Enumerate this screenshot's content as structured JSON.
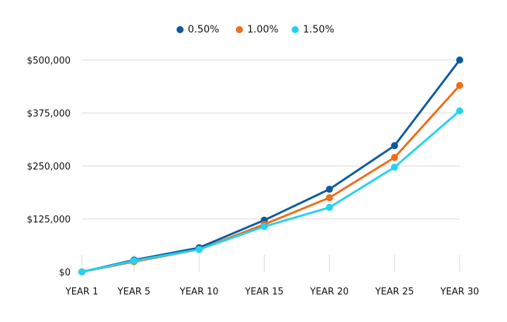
{
  "chart_data": {
    "type": "line",
    "categories": [
      "YEAR 1",
      "YEAR 5",
      "YEAR 10",
      "YEAR 15",
      "YEAR 20",
      "YEAR 25",
      "YEAR 30"
    ],
    "x_positions": [
      1,
      5,
      10,
      15,
      20,
      25,
      30
    ],
    "series": [
      {
        "name": "0.50%",
        "color": "#0d5aa0",
        "values": [
          0,
          28000,
          57000,
          122000,
          195000,
          298000,
          500000
        ]
      },
      {
        "name": "1.00%",
        "color": "#ef6c1a",
        "values": [
          0,
          24000,
          53000,
          112000,
          175000,
          270000,
          440000
        ]
      },
      {
        "name": "1.50%",
        "color": "#23d3ee",
        "values": [
          0,
          26000,
          53000,
          107000,
          152000,
          247000,
          380000
        ]
      }
    ],
    "y_ticks": [
      "$0",
      "$125,000",
      "$250,000",
      "$375,000",
      "$500,000"
    ],
    "y_tick_values": [
      0,
      125000,
      250000,
      375000,
      500000
    ],
    "ylim": [
      0,
      500000
    ],
    "legend_position": "top-center",
    "grid": "horizontal"
  }
}
